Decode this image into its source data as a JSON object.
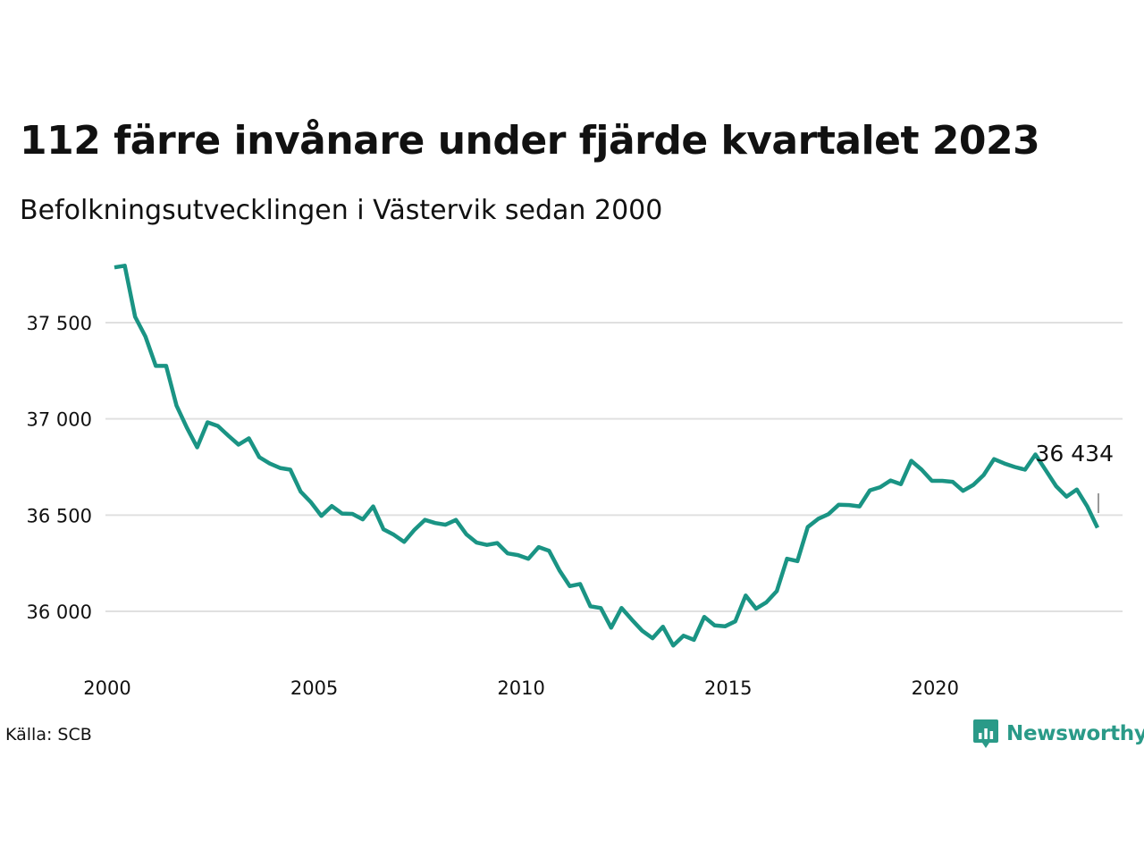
{
  "title": "112 färre invånare under fjärde kvartalet 2023",
  "subtitle": "Befolkningsutvecklingen i Västervik sedan 2000",
  "source": "Källa: SCB",
  "brand": "Newsworthy",
  "colors": {
    "line": "#1a9484",
    "grid": "#e0e0e0",
    "text": "#111111",
    "brand": "#2a9a88"
  },
  "chart_data": {
    "type": "line",
    "title": "112 färre invånare under fjärde kvartalet 2023",
    "subtitle": "Befolkningsutvecklingen i Västervik sedan 2000",
    "xlabel": "",
    "ylabel": "",
    "x_ticks": [
      2000,
      2005,
      2010,
      2015,
      2020
    ],
    "x_tick_labels": [
      "2000",
      "2005",
      "2010",
      "2015",
      "2020"
    ],
    "y_ticks": [
      36000,
      36500,
      37000,
      37500
    ],
    "y_tick_labels": [
      "36 000",
      "36 500",
      "37 000",
      "37 500"
    ],
    "xlim": [
      2000,
      2024.2
    ],
    "ylim": [
      35800,
      37800
    ],
    "grid": "horizontal",
    "end_label": "36 434",
    "series": [
      {
        "values": [
          {
            "x": 2000.0,
            "y": 37787
          },
          {
            "x": 2000.25,
            "y": 37796
          },
          {
            "x": 2000.5,
            "y": 37530
          },
          {
            "x": 2000.75,
            "y": 37428
          },
          {
            "x": 2001.0,
            "y": 37275
          },
          {
            "x": 2001.25,
            "y": 37275
          },
          {
            "x": 2001.5,
            "y": 37069
          },
          {
            "x": 2001.75,
            "y": 36954
          },
          {
            "x": 2002.0,
            "y": 36852
          },
          {
            "x": 2002.25,
            "y": 36982
          },
          {
            "x": 2002.5,
            "y": 36963
          },
          {
            "x": 2002.75,
            "y": 36913
          },
          {
            "x": 2003.0,
            "y": 36866
          },
          {
            "x": 2003.25,
            "y": 36899
          },
          {
            "x": 2003.5,
            "y": 36801
          },
          {
            "x": 2003.75,
            "y": 36768
          },
          {
            "x": 2004.0,
            "y": 36745
          },
          {
            "x": 2004.25,
            "y": 36736
          },
          {
            "x": 2004.5,
            "y": 36622
          },
          {
            "x": 2004.75,
            "y": 36566
          },
          {
            "x": 2005.0,
            "y": 36496
          },
          {
            "x": 2005.25,
            "y": 36547
          },
          {
            "x": 2005.5,
            "y": 36508
          },
          {
            "x": 2005.75,
            "y": 36506
          },
          {
            "x": 2006.0,
            "y": 36478
          },
          {
            "x": 2006.25,
            "y": 36545
          },
          {
            "x": 2006.5,
            "y": 36426
          },
          {
            "x": 2006.75,
            "y": 36398
          },
          {
            "x": 2007.0,
            "y": 36361
          },
          {
            "x": 2007.25,
            "y": 36424
          },
          {
            "x": 2007.5,
            "y": 36475
          },
          {
            "x": 2007.75,
            "y": 36459
          },
          {
            "x": 2008.0,
            "y": 36450
          },
          {
            "x": 2008.25,
            "y": 36475
          },
          {
            "x": 2008.5,
            "y": 36401
          },
          {
            "x": 2008.75,
            "y": 36357
          },
          {
            "x": 2009.0,
            "y": 36345
          },
          {
            "x": 2009.25,
            "y": 36355
          },
          {
            "x": 2009.5,
            "y": 36301
          },
          {
            "x": 2009.75,
            "y": 36292
          },
          {
            "x": 2010.0,
            "y": 36273
          },
          {
            "x": 2010.25,
            "y": 36334
          },
          {
            "x": 2010.5,
            "y": 36315
          },
          {
            "x": 2010.75,
            "y": 36213
          },
          {
            "x": 2011.0,
            "y": 36131
          },
          {
            "x": 2011.25,
            "y": 36142
          },
          {
            "x": 2011.5,
            "y": 36026
          },
          {
            "x": 2011.75,
            "y": 36017
          },
          {
            "x": 2012.0,
            "y": 35915
          },
          {
            "x": 2012.25,
            "y": 36017
          },
          {
            "x": 2012.5,
            "y": 35957
          },
          {
            "x": 2012.75,
            "y": 35899
          },
          {
            "x": 2013.0,
            "y": 35860
          },
          {
            "x": 2013.25,
            "y": 35920
          },
          {
            "x": 2013.5,
            "y": 35822
          },
          {
            "x": 2013.75,
            "y": 35873
          },
          {
            "x": 2014.0,
            "y": 35852
          },
          {
            "x": 2014.25,
            "y": 35971
          },
          {
            "x": 2014.5,
            "y": 35927
          },
          {
            "x": 2014.75,
            "y": 35922
          },
          {
            "x": 2015.0,
            "y": 35948
          },
          {
            "x": 2015.25,
            "y": 36082
          },
          {
            "x": 2015.5,
            "y": 36014
          },
          {
            "x": 2015.75,
            "y": 36047
          },
          {
            "x": 2016.0,
            "y": 36105
          },
          {
            "x": 2016.25,
            "y": 36273
          },
          {
            "x": 2016.5,
            "y": 36261
          },
          {
            "x": 2016.75,
            "y": 36438
          },
          {
            "x": 2017.0,
            "y": 36480
          },
          {
            "x": 2017.25,
            "y": 36505
          },
          {
            "x": 2017.5,
            "y": 36554
          },
          {
            "x": 2017.75,
            "y": 36552
          },
          {
            "x": 2018.0,
            "y": 36545
          },
          {
            "x": 2018.25,
            "y": 36629
          },
          {
            "x": 2018.5,
            "y": 36645
          },
          {
            "x": 2018.75,
            "y": 36680
          },
          {
            "x": 2019.0,
            "y": 36661
          },
          {
            "x": 2019.25,
            "y": 36782
          },
          {
            "x": 2019.5,
            "y": 36736
          },
          {
            "x": 2019.75,
            "y": 36678
          },
          {
            "x": 2020.0,
            "y": 36678
          },
          {
            "x": 2020.25,
            "y": 36673
          },
          {
            "x": 2020.5,
            "y": 36626
          },
          {
            "x": 2020.75,
            "y": 36657
          },
          {
            "x": 2021.0,
            "y": 36708
          },
          {
            "x": 2021.25,
            "y": 36791
          },
          {
            "x": 2021.5,
            "y": 36768
          },
          {
            "x": 2021.75,
            "y": 36750
          },
          {
            "x": 2022.0,
            "y": 36736
          },
          {
            "x": 2022.25,
            "y": 36815
          },
          {
            "x": 2022.5,
            "y": 36733
          },
          {
            "x": 2022.75,
            "y": 36650
          },
          {
            "x": 2023.0,
            "y": 36596
          },
          {
            "x": 2023.25,
            "y": 36633
          },
          {
            "x": 2023.5,
            "y": 36546
          },
          {
            "x": 2023.75,
            "y": 36434
          }
        ]
      }
    ]
  }
}
